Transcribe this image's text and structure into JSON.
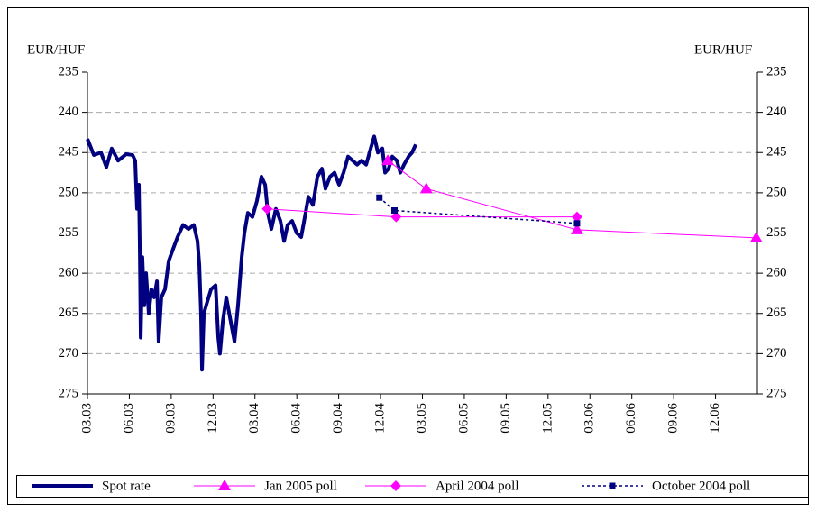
{
  "chart_data": {
    "type": "line",
    "y_label": "EUR/HUF",
    "y2_label": "EUR/HUF",
    "ylim": [
      235,
      275
    ],
    "y_inverted": true,
    "yticks": [
      235,
      240,
      245,
      250,
      255,
      260,
      265,
      270,
      275
    ],
    "y2lim": [
      235,
      275
    ],
    "y2ticks": [
      235,
      240,
      245,
      250,
      255,
      260,
      265,
      270,
      275
    ],
    "xlim": [
      2003.167,
      2007.167
    ],
    "xticks": [
      {
        "value": 2003.167,
        "label": "03.03"
      },
      {
        "value": 2003.417,
        "label": "06.03"
      },
      {
        "value": 2003.667,
        "label": "09.03"
      },
      {
        "value": 2003.917,
        "label": "12.03"
      },
      {
        "value": 2004.167,
        "label": "03.04"
      },
      {
        "value": 2004.417,
        "label": "06.04"
      },
      {
        "value": 2004.667,
        "label": "09.04"
      },
      {
        "value": 2004.917,
        "label": "12.04"
      },
      {
        "value": 2005.167,
        "label": "03.05"
      },
      {
        "value": 2005.417,
        "label": "06.05"
      },
      {
        "value": 2005.667,
        "label": "09.05"
      },
      {
        "value": 2005.917,
        "label": "12.05"
      },
      {
        "value": 2006.167,
        "label": "03.06"
      },
      {
        "value": 2006.417,
        "label": "06.06"
      },
      {
        "value": 2006.667,
        "label": "09.06"
      },
      {
        "value": 2006.917,
        "label": "12.06"
      }
    ],
    "grid": true,
    "legend": "bottom",
    "series": [
      {
        "name": "Spot rate",
        "color": "#000080",
        "width": 4,
        "marker": "none",
        "dash": false,
        "x": [
          2003.167,
          2003.205,
          2003.248,
          2003.28,
          2003.312,
          2003.35,
          2003.398,
          2003.436,
          2003.452,
          2003.463,
          2003.474,
          2003.479,
          2003.485,
          2003.495,
          2003.506,
          2003.517,
          2003.533,
          2003.549,
          2003.565,
          2003.582,
          2003.592,
          2003.608,
          2003.63,
          2003.652,
          2003.678,
          2003.705,
          2003.738,
          2003.77,
          2003.802,
          2003.824,
          2003.835,
          2003.845,
          2003.851,
          2003.862,
          2003.883,
          2003.905,
          2003.932,
          2003.948,
          2003.958,
          2003.975,
          2003.996,
          2004.018,
          2004.045,
          2004.066,
          2004.088,
          2004.104,
          2004.125,
          2004.152,
          2004.179,
          2004.206,
          2004.228,
          2004.244,
          2004.265,
          2004.292,
          2004.319,
          2004.341,
          2004.362,
          2004.389,
          2004.416,
          2004.443,
          2004.465,
          2004.486,
          2004.513,
          2004.54,
          2004.567,
          2004.588,
          2004.615,
          2004.642,
          2004.669,
          2004.696,
          2004.723,
          2004.75,
          2004.777,
          2004.804,
          2004.831,
          2004.858,
          2004.879,
          2004.901,
          2004.928,
          2004.944,
          2004.965,
          2004.987,
          2005.014,
          2005.035,
          2005.057,
          2005.084,
          2005.105,
          2005.127
        ],
        "values": [
          243.3,
          245.3,
          245,
          246.8,
          244.5,
          246,
          245.2,
          245.3,
          246,
          252,
          249,
          256,
          268,
          258,
          264,
          260,
          265,
          262,
          263,
          261,
          268.5,
          263,
          262,
          258.5,
          257,
          255.5,
          254,
          254.5,
          254,
          256,
          259,
          265,
          272,
          265,
          263.5,
          262,
          261.5,
          268,
          270,
          266,
          263,
          265.5,
          268.5,
          264,
          258,
          255,
          252.5,
          253,
          251,
          248,
          249,
          252.5,
          254.5,
          252,
          253.5,
          256,
          254,
          253.5,
          255,
          255.5,
          253,
          250.5,
          251.5,
          248,
          247,
          249.5,
          248,
          247.5,
          249,
          247.5,
          245.5,
          246,
          246.5,
          246,
          246.5,
          244.5,
          243,
          245,
          244.5,
          247.5,
          247,
          245.5,
          246,
          247.5,
          246.5,
          245.5,
          245,
          244
        ]
      },
      {
        "name": "Jan 2005 poll",
        "color": "#ff00ff",
        "width": 1,
        "marker": "triangle",
        "dash": false,
        "x": [
          2004.96,
          2005.19,
          2006.09,
          2007.16
        ],
        "values": [
          246,
          249.5,
          254.6,
          255.6
        ]
      },
      {
        "name": "April 2004 poll",
        "color": "#ff00ff",
        "width": 1,
        "marker": "diamond",
        "dash": false,
        "x": [
          2004.24,
          2005.01,
          2006.09
        ],
        "values": [
          252,
          253,
          253
        ]
      },
      {
        "name": "October 2004 poll",
        "color": "#000080",
        "width": 1.5,
        "marker": "square",
        "dash": true,
        "x": [
          2004.91,
          2005.0,
          2006.09
        ],
        "values": [
          250.6,
          252.2,
          253.8
        ]
      }
    ]
  }
}
